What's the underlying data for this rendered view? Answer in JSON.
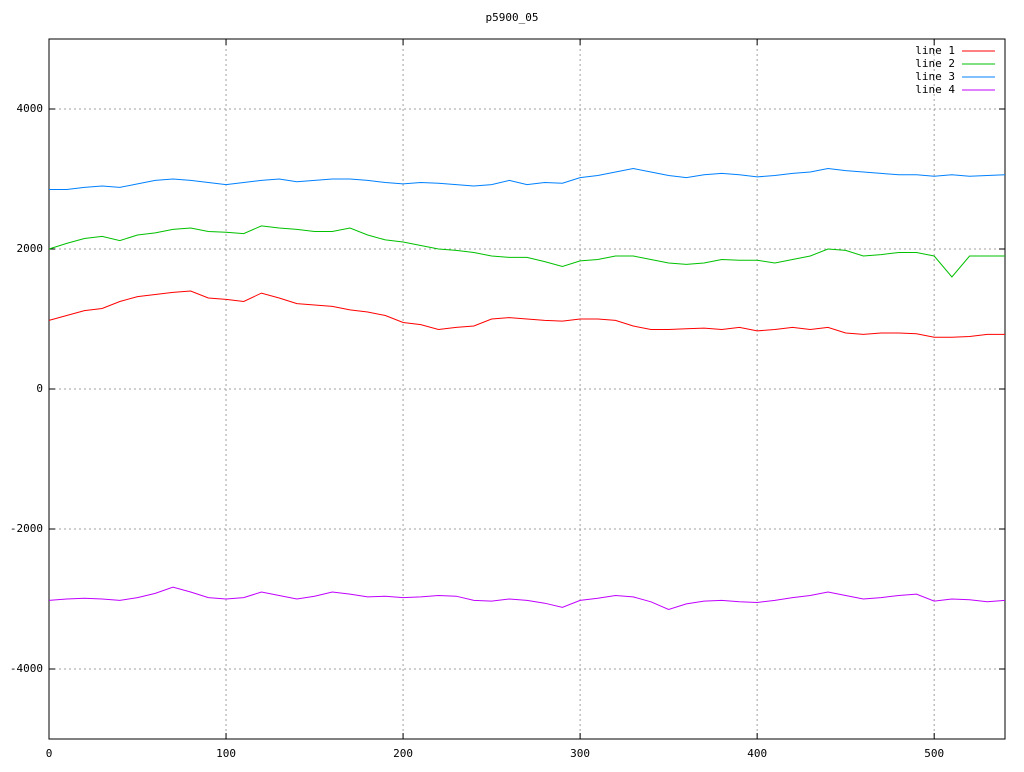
{
  "chart_data": {
    "type": "line",
    "title": "p5900_05",
    "x": [
      0,
      10,
      20,
      30,
      40,
      50,
      60,
      70,
      80,
      90,
      100,
      110,
      120,
      130,
      140,
      150,
      160,
      170,
      180,
      190,
      200,
      210,
      220,
      230,
      240,
      250,
      260,
      270,
      280,
      290,
      300,
      310,
      320,
      330,
      340,
      350,
      360,
      370,
      380,
      390,
      400,
      410,
      420,
      430,
      440,
      450,
      460,
      470,
      480,
      490,
      500,
      510,
      520,
      530,
      540
    ],
    "series": [
      {
        "name": "line 1",
        "color": "#ff0000",
        "values": [
          980,
          1050,
          1120,
          1150,
          1250,
          1320,
          1350,
          1380,
          1400,
          1300,
          1280,
          1250,
          1370,
          1300,
          1220,
          1200,
          1180,
          1130,
          1100,
          1050,
          950,
          920,
          850,
          880,
          900,
          1000,
          1020,
          1000,
          980,
          970,
          1000,
          1000,
          980,
          900,
          850,
          850,
          860,
          870,
          850,
          880,
          830,
          850,
          880,
          850,
          880,
          800,
          780,
          800,
          800,
          790,
          740,
          740,
          750,
          780,
          780
        ]
      },
      {
        "name": "line 2",
        "color": "#00c000",
        "values": [
          2000,
          2080,
          2150,
          2180,
          2120,
          2200,
          2230,
          2280,
          2300,
          2250,
          2240,
          2220,
          2330,
          2300,
          2280,
          2250,
          2250,
          2300,
          2200,
          2130,
          2100,
          2050,
          2000,
          1980,
          1950,
          1900,
          1880,
          1880,
          1820,
          1750,
          1830,
          1850,
          1900,
          1900,
          1850,
          1800,
          1780,
          1800,
          1850,
          1840,
          1840,
          1800,
          1850,
          1900,
          2000,
          1980,
          1900,
          1920,
          1950,
          1950,
          1900,
          1600,
          1900,
          1900,
          1900
        ]
      },
      {
        "name": "line 3",
        "color": "#0080ff",
        "values": [
          2850,
          2850,
          2880,
          2900,
          2880,
          2930,
          2980,
          3000,
          2980,
          2950,
          2920,
          2950,
          2980,
          3000,
          2960,
          2980,
          3000,
          3000,
          2980,
          2950,
          2930,
          2950,
          2940,
          2920,
          2900,
          2920,
          2980,
          2920,
          2950,
          2940,
          3020,
          3050,
          3100,
          3150,
          3100,
          3050,
          3020,
          3060,
          3080,
          3060,
          3030,
          3050,
          3080,
          3100,
          3150,
          3120,
          3100,
          3080,
          3060,
          3060,
          3040,
          3060,
          3040,
          3050,
          3060
        ]
      },
      {
        "name": "line 4",
        "color": "#c000ff",
        "values": [
          -3020,
          -3000,
          -2990,
          -3000,
          -3020,
          -2980,
          -2920,
          -2830,
          -2900,
          -2980,
          -3000,
          -2980,
          -2900,
          -2950,
          -3000,
          -2960,
          -2900,
          -2930,
          -2970,
          -2960,
          -2980,
          -2970,
          -2950,
          -2960,
          -3020,
          -3030,
          -3000,
          -3020,
          -3060,
          -3120,
          -3020,
          -2990,
          -2950,
          -2970,
          -3040,
          -3150,
          -3070,
          -3030,
          -3020,
          -3040,
          -3050,
          -3020,
          -2980,
          -2950,
          -2900,
          -2950,
          -3000,
          -2980,
          -2950,
          -2930,
          -3030,
          -3000,
          -3010,
          -3040,
          -3020
        ]
      }
    ],
    "xlim": [
      0,
      540
    ],
    "ylim": [
      -5000,
      5000
    ],
    "xticks": [
      0,
      100,
      200,
      300,
      400,
      500
    ],
    "yticks": [
      -4000,
      -2000,
      0,
      2000,
      4000
    ],
    "grid": true,
    "legend": "upper right"
  }
}
